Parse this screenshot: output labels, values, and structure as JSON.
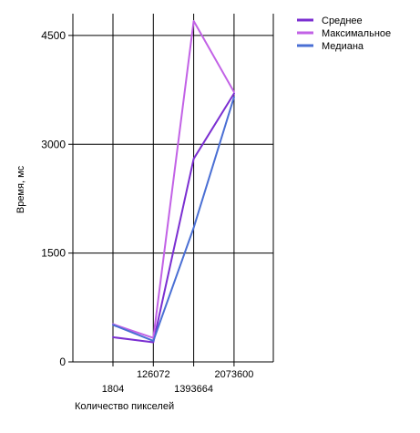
{
  "chart_data": {
    "type": "line",
    "title": "",
    "xlabel": "Количество пикселей",
    "ylabel": "Время, мс",
    "categories": [
      "1804",
      "126072",
      "1393664",
      "2073600"
    ],
    "yticks": [
      "0",
      "1500",
      "3000",
      "4500"
    ],
    "ylim": [
      0,
      4800
    ],
    "grid": true,
    "legend_position": "top-right",
    "series": [
      {
        "name": "Среднее",
        "color": "#7b2fd1",
        "values": [
          340,
          270,
          2800,
          3700
        ]
      },
      {
        "name": "Максимальное",
        "color": "#c262e6",
        "values": [
          520,
          330,
          4700,
          3720
        ]
      },
      {
        "name": "Медиана",
        "color": "#4a6fd4",
        "values": [
          510,
          290,
          1850,
          3650
        ]
      }
    ]
  }
}
